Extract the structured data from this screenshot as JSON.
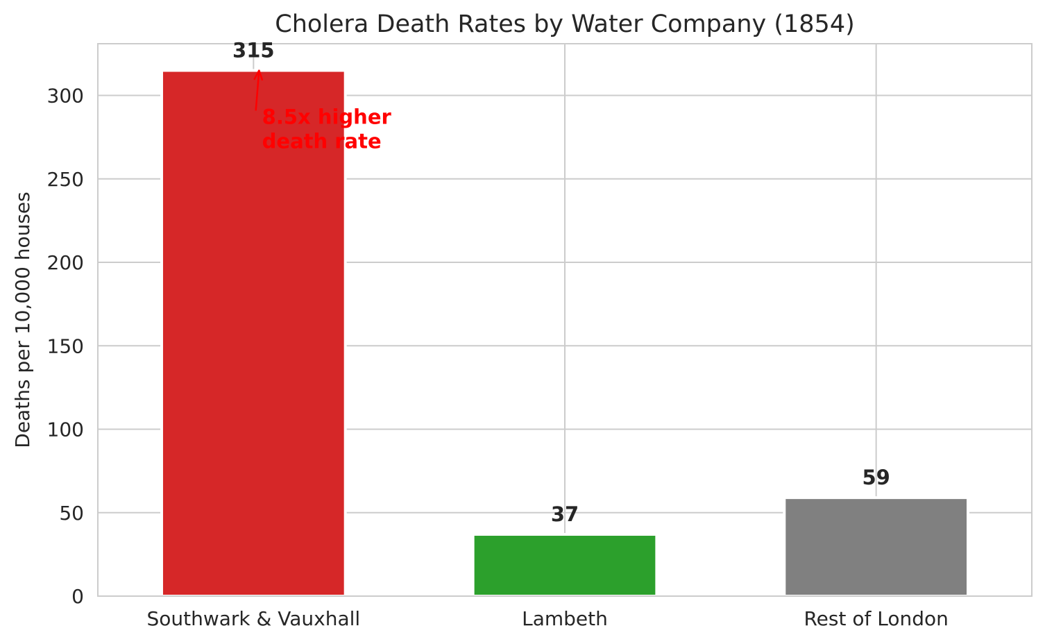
{
  "chart_data": {
    "type": "bar",
    "title": "Cholera Death Rates by Water Company (1854)",
    "xlabel": "",
    "ylabel": "Deaths per 10,000 houses",
    "categories": [
      "Southwark & Vauxhall",
      "Lambeth",
      "Rest of London"
    ],
    "values": [
      315,
      37,
      59
    ],
    "value_labels": [
      "315",
      "37",
      "59"
    ],
    "colors": [
      "#d62728",
      "#2ca02c",
      "#808080"
    ],
    "ylim": [
      0,
      331
    ],
    "yticks": [
      0,
      50,
      100,
      150,
      200,
      250,
      300
    ],
    "ytick_labels": [
      "0",
      "50",
      "100",
      "150",
      "200",
      "250",
      "300"
    ],
    "grid": true,
    "annotation": {
      "lines": [
        "8.5x higher",
        "death rate"
      ],
      "color": "#ff0000",
      "target_category": "Southwark & Vauxhall",
      "target_value": 315,
      "text_anchor_category_offset": 0.5,
      "text_value": 283
    }
  }
}
